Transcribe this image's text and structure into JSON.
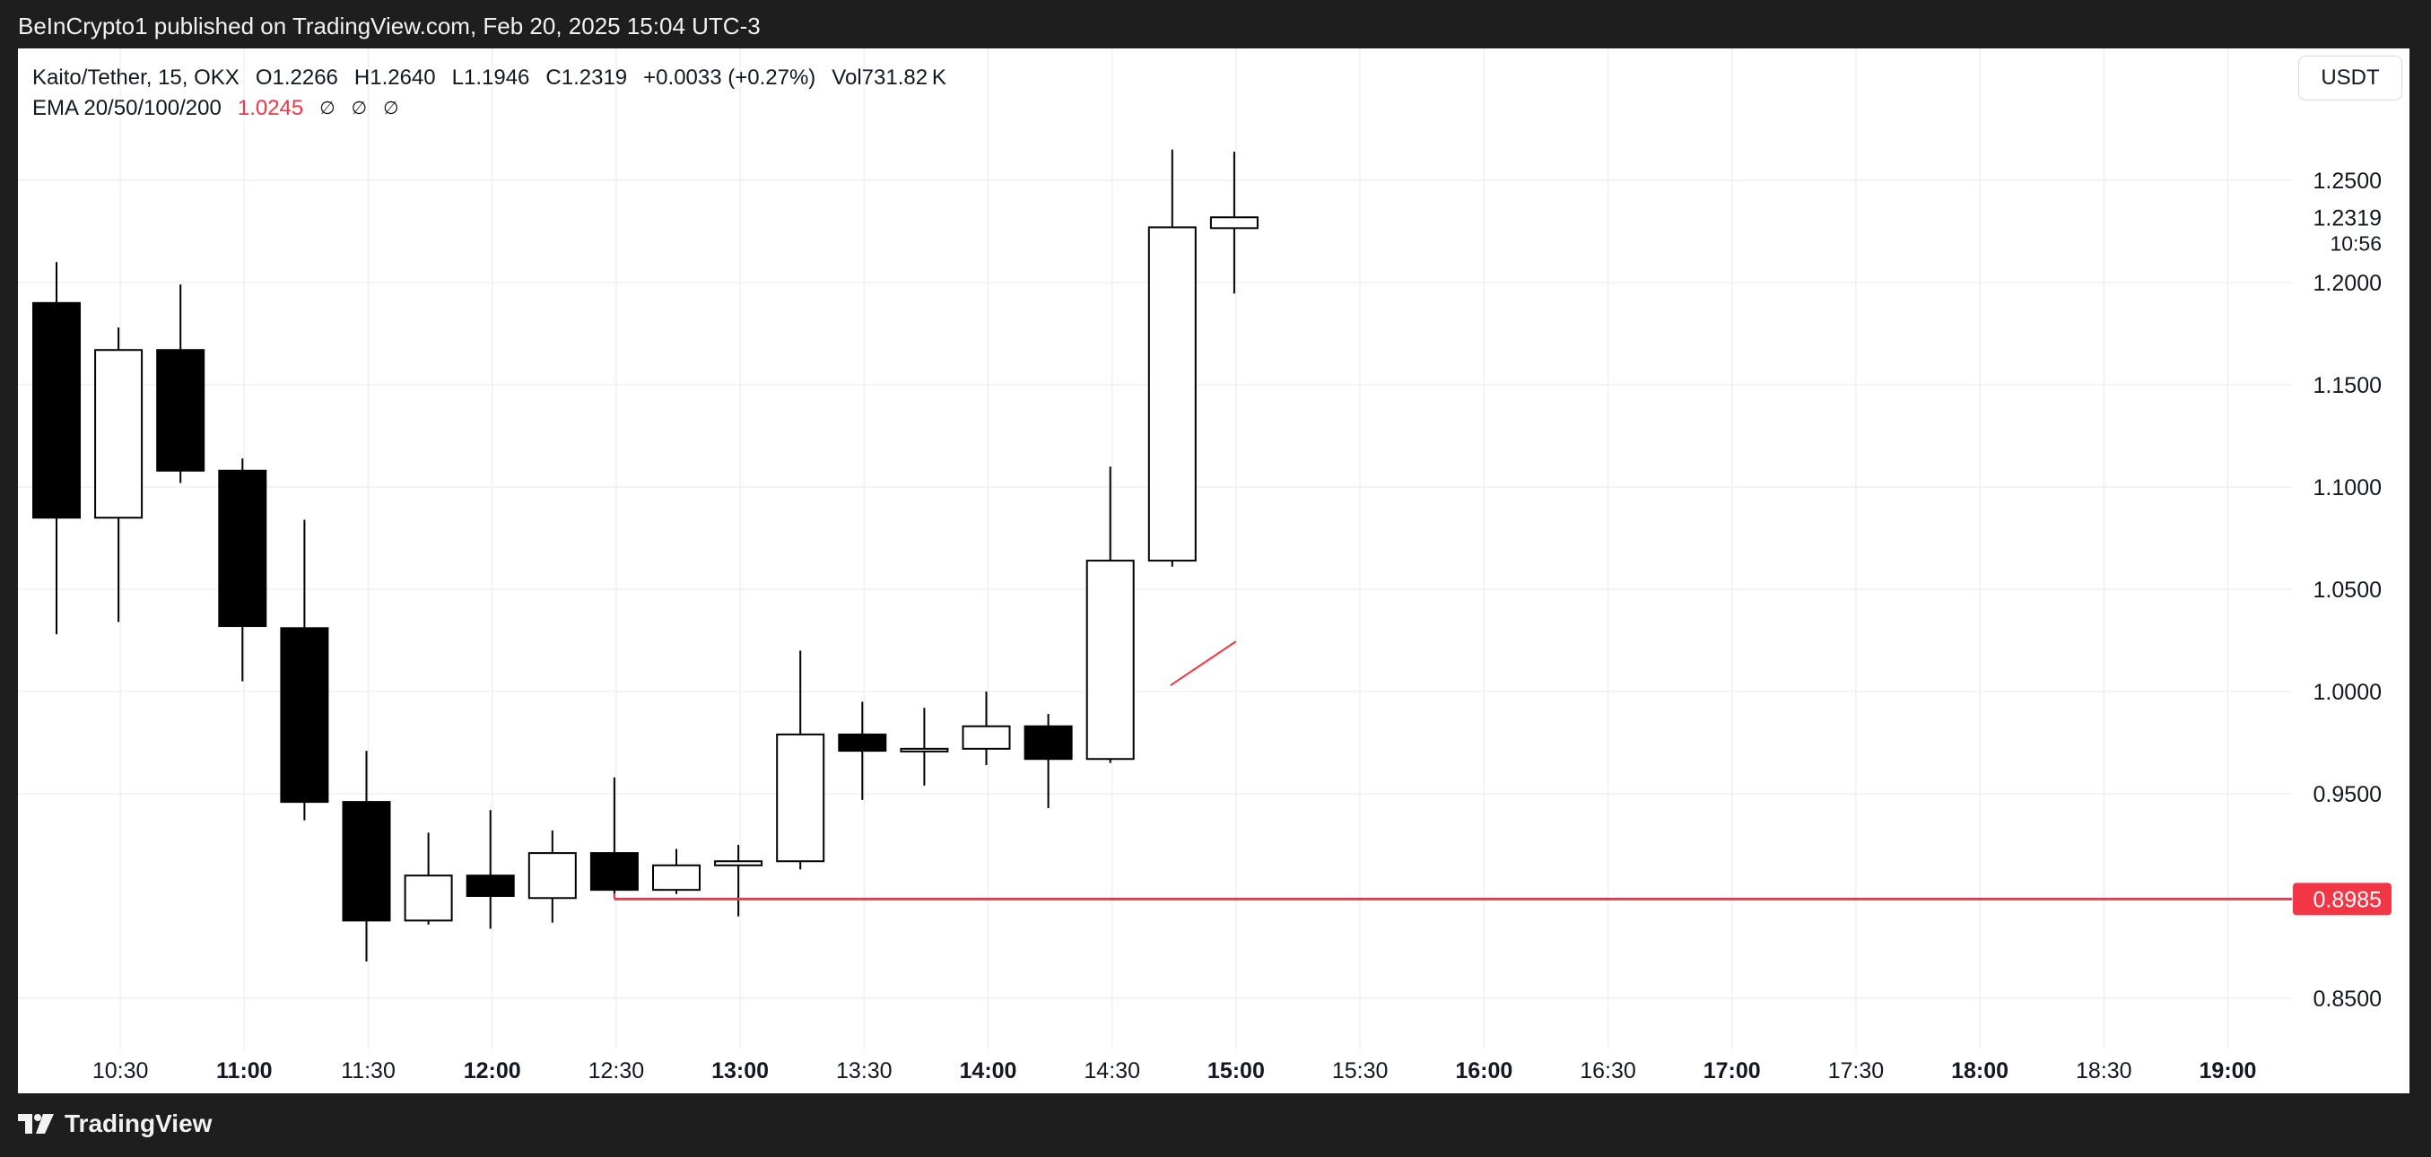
{
  "header": {
    "publish_text": "BeInCrypto1 published on TradingView.com, Feb 20, 2025 15:04 UTC-3"
  },
  "legend": {
    "symbol": "Kaito/Tether, 15, OKX",
    "open": "O1.2266",
    "high": "H1.2640",
    "low": "L1.1946",
    "close": "C1.2319",
    "change": "+0.0033 (+0.27%)",
    "volume": "Vol731.82 K",
    "ema_label": "EMA 20/50/100/200",
    "ema_value": "1.0245",
    "ema_na": [
      "∅",
      "∅",
      "∅"
    ]
  },
  "currency_button": "USDT",
  "footer": {
    "brand": "TradingView"
  },
  "colors": {
    "bear": "#000000",
    "bull": "#ffffff",
    "outline": "#000000",
    "support": "#f23645",
    "ema": "#f23645",
    "grid": "#f0f0f0"
  },
  "chart_data": {
    "type": "candlestick",
    "title": "Kaito/Tether, 15, OKX",
    "ylim": [
      0.825,
      1.275
    ],
    "y_ticks": [
      "0.8500",
      "0.9500",
      "1.0000",
      "1.0500",
      "1.1000",
      "1.1500",
      "1.2000",
      "1.2500"
    ],
    "x_ticks": [
      {
        "label": "10:30",
        "bold": false
      },
      {
        "label": "11:00",
        "bold": true
      },
      {
        "label": "11:30",
        "bold": false
      },
      {
        "label": "12:00",
        "bold": true
      },
      {
        "label": "12:30",
        "bold": false
      },
      {
        "label": "13:00",
        "bold": true
      },
      {
        "label": "13:30",
        "bold": false
      },
      {
        "label": "14:00",
        "bold": true
      },
      {
        "label": "14:30",
        "bold": false
      },
      {
        "label": "15:00",
        "bold": true
      },
      {
        "label": "15:30",
        "bold": false
      },
      {
        "label": "16:00",
        "bold": true
      },
      {
        "label": "16:30",
        "bold": false
      },
      {
        "label": "17:00",
        "bold": true
      },
      {
        "label": "17:30",
        "bold": false
      },
      {
        "label": "18:00",
        "bold": true
      },
      {
        "label": "18:30",
        "bold": false
      },
      {
        "label": "19:00",
        "bold": true
      }
    ],
    "candles": [
      {
        "time": "10:15",
        "open": 1.19,
        "high": 1.21,
        "low": 1.028,
        "close": 1.085
      },
      {
        "time": "10:30",
        "open": 1.085,
        "high": 1.178,
        "low": 1.034,
        "close": 1.167
      },
      {
        "time": "10:45",
        "open": 1.167,
        "high": 1.199,
        "low": 1.102,
        "close": 1.108
      },
      {
        "time": "11:00",
        "open": 1.108,
        "high": 1.114,
        "low": 1.005,
        "close": 1.032
      },
      {
        "time": "11:15",
        "open": 1.031,
        "high": 1.084,
        "low": 0.937,
        "close": 0.946
      },
      {
        "time": "11:30",
        "open": 0.946,
        "high": 0.971,
        "low": 0.868,
        "close": 0.888
      },
      {
        "time": "11:45",
        "open": 0.888,
        "high": 0.931,
        "low": 0.886,
        "close": 0.91
      },
      {
        "time": "12:00",
        "open": 0.91,
        "high": 0.942,
        "low": 0.884,
        "close": 0.9
      },
      {
        "time": "12:15",
        "open": 0.899,
        "high": 0.932,
        "low": 0.887,
        "close": 0.921
      },
      {
        "time": "12:30",
        "open": 0.921,
        "high": 0.958,
        "low": 0.899,
        "close": 0.903
      },
      {
        "time": "12:45",
        "open": 0.903,
        "high": 0.923,
        "low": 0.901,
        "close": 0.915
      },
      {
        "time": "13:00",
        "open": 0.915,
        "high": 0.925,
        "low": 0.89,
        "close": 0.917
      },
      {
        "time": "13:15",
        "open": 0.917,
        "high": 1.02,
        "low": 0.913,
        "close": 0.979
      },
      {
        "time": "13:30",
        "open": 0.979,
        "high": 0.995,
        "low": 0.947,
        "close": 0.971
      },
      {
        "time": "13:45",
        "open": 0.971,
        "high": 0.992,
        "low": 0.954,
        "close": 0.972
      },
      {
        "time": "14:00",
        "open": 0.972,
        "high": 1.0,
        "low": 0.964,
        "close": 0.983
      },
      {
        "time": "14:15",
        "open": 0.983,
        "high": 0.989,
        "low": 0.943,
        "close": 0.967
      },
      {
        "time": "14:30",
        "open": 0.967,
        "high": 1.11,
        "low": 0.965,
        "close": 1.064
      },
      {
        "time": "14:45",
        "open": 1.064,
        "high": 1.265,
        "low": 1.061,
        "close": 1.227
      },
      {
        "time": "15:00",
        "open": 1.2266,
        "high": 1.264,
        "low": 1.1946,
        "close": 1.2319
      }
    ],
    "ema20": [
      {
        "candle": 18,
        "value": 1.003
      },
      {
        "candle": 19,
        "value": 1.0245
      }
    ],
    "support": {
      "value": 0.8985,
      "label": "0.8985",
      "from_candle": 9
    },
    "last_price": {
      "label": "1.2319",
      "countdown": "10:56"
    }
  }
}
